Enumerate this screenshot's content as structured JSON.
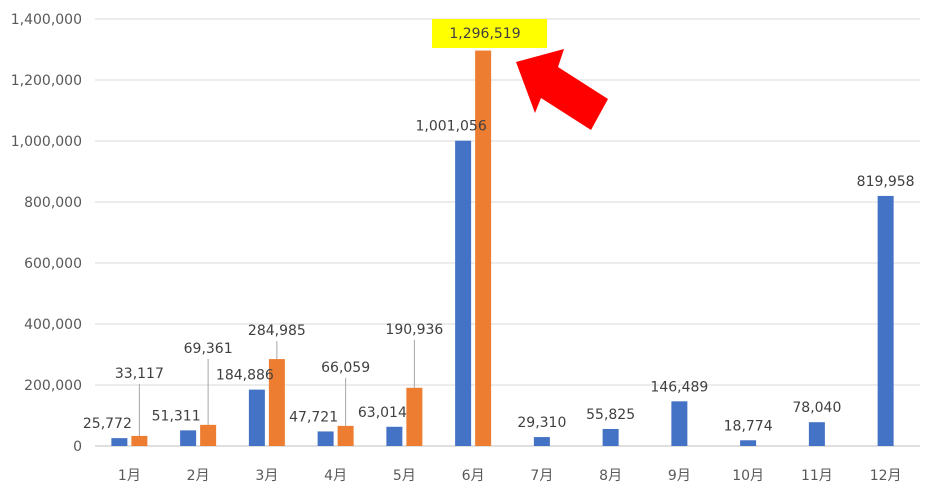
{
  "chart_data": {
    "type": "bar",
    "categories": [
      "1月",
      "2月",
      "3月",
      "4月",
      "5月",
      "6月",
      "7月",
      "8月",
      "9月",
      "10月",
      "11月",
      "12月"
    ],
    "y_ticks": [
      "0",
      "200,000",
      "400,000",
      "600,000",
      "800,000",
      "1,000,000",
      "1,200,000",
      "1,400,000"
    ],
    "ylim": [
      0,
      1400000
    ],
    "grid": true,
    "title": "",
    "xlabel": "",
    "ylabel": "",
    "series": [
      {
        "color": "#4472C4",
        "values": [
          25772,
          51311,
          184886,
          47721,
          63014,
          1001056,
          29310,
          55825,
          146489,
          18774,
          78040,
          819958
        ],
        "labels": [
          "25,772",
          "51,311",
          "184,886",
          "47,721",
          "63,014",
          "1,001,056",
          "29,310",
          "55,825",
          "146,489",
          "18,774",
          "78,040",
          "819,958"
        ]
      },
      {
        "color": "#ED7D31",
        "values": [
          33117,
          69361,
          284985,
          66059,
          190936,
          1296519,
          null,
          null,
          null,
          null,
          null,
          null
        ],
        "labels": [
          "33,117",
          "69,361",
          "284,985",
          "66,059",
          "190,936",
          "1,296,519",
          null,
          null,
          null,
          null,
          null,
          null
        ]
      }
    ],
    "annotations": {
      "highlight_label": "1,296,519",
      "highlight_color": "#FFFF00",
      "arrow": "red-arrow",
      "arrow_color": "#FF0000"
    }
  }
}
